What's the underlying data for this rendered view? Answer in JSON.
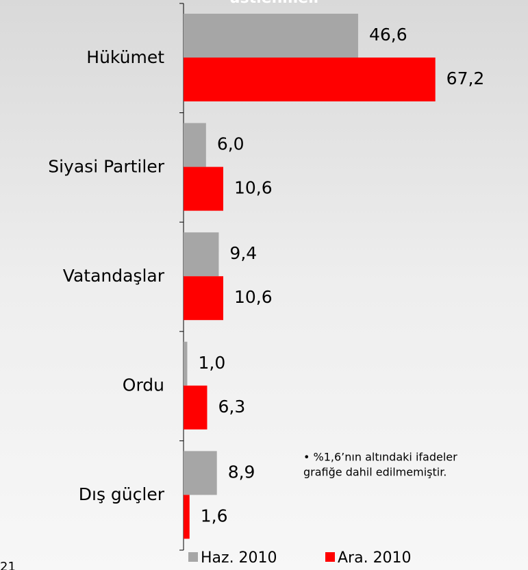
{
  "chart_data": {
    "type": "barh",
    "title": "üstlenmeli",
    "categories": [
      "Hükümet",
      "Siyasi Partiler",
      "Vatandaşlar",
      "Ordu",
      "Dış güçler"
    ],
    "series": [
      {
        "name": "Haz. 2010",
        "color": "#a6a6a6",
        "values": [
          46.6,
          6.0,
          9.4,
          1.0,
          8.9
        ],
        "value_labels": [
          "46,6",
          "6,0",
          "9,4",
          "1,0",
          "8,9"
        ]
      },
      {
        "name": "Ara. 2010",
        "color": "#ff0000",
        "values": [
          67.2,
          10.6,
          10.6,
          6.3,
          1.6
        ],
        "value_labels": [
          "67,2",
          "10,6",
          "10,6",
          "6,3",
          "1,6"
        ]
      }
    ],
    "xlim": [
      0,
      70
    ],
    "annotation": [
      "• %1,6’nın altındaki ifadeler",
      "grafiğe dahil edilmemiştir."
    ],
    "page_number": "21"
  }
}
